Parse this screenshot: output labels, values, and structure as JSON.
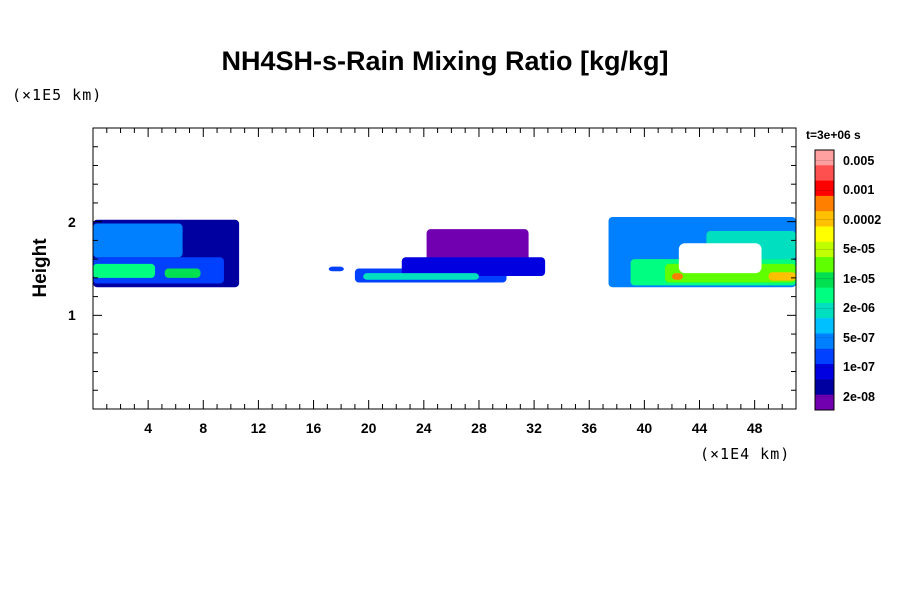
{
  "chart_data": {
    "type": "heatmap",
    "title": "NH4SH-s-Rain Mixing Ratio [kg/kg]",
    "xlabel": "",
    "ylabel": "Height",
    "x_unit": "(×1E4 km)",
    "y_unit": "(×1E5 km)",
    "time_label": "t=3e+06 s",
    "xlim": [
      0,
      51
    ],
    "ylim": [
      0,
      3
    ],
    "x_ticks": [
      4,
      8,
      12,
      16,
      20,
      24,
      28,
      32,
      36,
      40,
      44,
      48
    ],
    "y_ticks": [
      1,
      2
    ],
    "colorbar": {
      "levels": [
        "0.005",
        "0.001",
        "0.0002",
        "5e-05",
        "1e-05",
        "2e-06",
        "5e-07",
        "1e-07",
        "2e-08"
      ],
      "colors": [
        "#ffa0a0",
        "#ff5050",
        "#ff0000",
        "#ff8000",
        "#ffc000",
        "#ffff00",
        "#c0ff00",
        "#60ff00",
        "#00e050",
        "#00ff80",
        "#00e0c0",
        "#00c0ff",
        "#0080ff",
        "#0040ff",
        "#0000e0",
        "#0000a0",
        "#7000b0"
      ]
    },
    "regions": [
      {
        "name": "left",
        "x_range": [
          0,
          10.6
        ],
        "y_range": [
          1.3,
          2.02
        ],
        "max_level": "5e-05"
      },
      {
        "name": "center",
        "x_range": [
          17,
          32.8
        ],
        "y_range": [
          1.35,
          1.92
        ],
        "max_level": "5e-07"
      },
      {
        "name": "right",
        "x_range": [
          37.4,
          51
        ],
        "y_range": [
          1.3,
          2.05
        ],
        "max_level": "0.001"
      }
    ]
  }
}
